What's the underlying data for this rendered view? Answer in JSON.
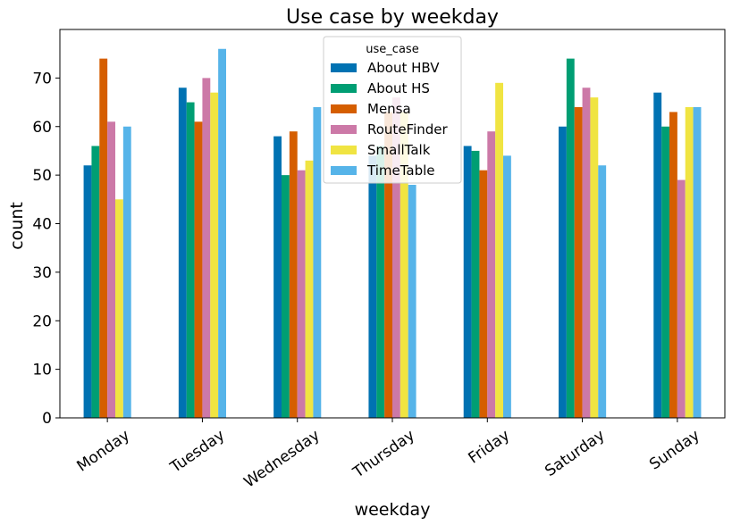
{
  "chart_data": {
    "type": "bar",
    "title": "Use case by weekday",
    "xlabel": "weekday",
    "ylabel": "count",
    "categories": [
      "Monday",
      "Tuesday",
      "Wednesday",
      "Thursday",
      "Friday",
      "Saturday",
      "Sunday"
    ],
    "ylim": [
      0,
      80
    ],
    "yticks": [
      0,
      10,
      20,
      30,
      40,
      50,
      60,
      70
    ],
    "grid": false,
    "legend": {
      "title": "use_case",
      "placement": "top-center"
    },
    "series": [
      {
        "name": "About HBV",
        "color": "#0072b2",
        "values": [
          52,
          68,
          58,
          54,
          56,
          60,
          67
        ]
      },
      {
        "name": "About HS",
        "color": "#009e73",
        "values": [
          56,
          65,
          50,
          56,
          55,
          74,
          60
        ]
      },
      {
        "name": "Mensa",
        "color": "#d55e00",
        "values": [
          74,
          61,
          59,
          63,
          51,
          64,
          63
        ]
      },
      {
        "name": "RouteFinder",
        "color": "#cc79a7",
        "values": [
          61,
          70,
          51,
          66,
          59,
          68,
          49
        ]
      },
      {
        "name": "SmallTalk",
        "color": "#f0e442",
        "values": [
          45,
          67,
          53,
          63,
          69,
          66,
          64
        ]
      },
      {
        "name": "TimeTable",
        "color": "#56b4e9",
        "values": [
          60,
          76,
          64,
          48,
          54,
          52,
          64
        ]
      }
    ]
  }
}
